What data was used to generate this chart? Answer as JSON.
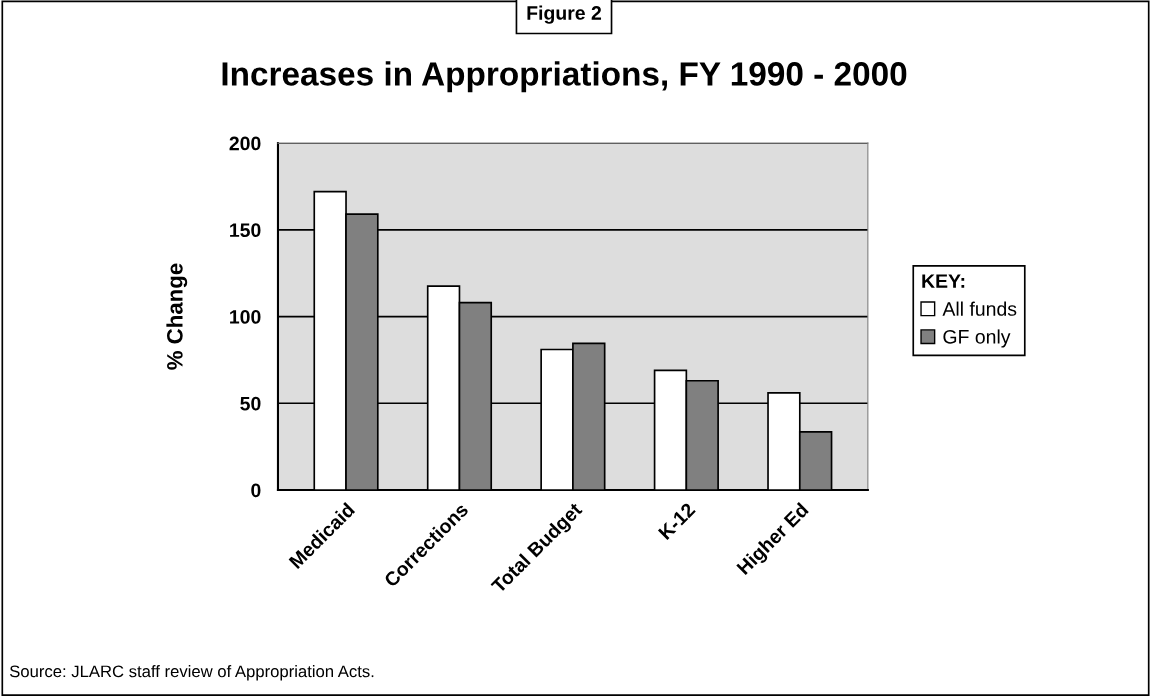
{
  "chart_data": {
    "type": "bar",
    "title": "Increases in Appropriations, FY 1990 - 2000",
    "ylabel": "% Change",
    "categories": [
      "Medicaid",
      "Corrections",
      "Total Budget",
      "K-12",
      "Higher Ed"
    ],
    "series": [
      {
        "name": "All funds",
        "color": "#ffffff",
        "values": [
          172,
          117.5,
          81,
          69,
          56
        ]
      },
      {
        "name": "GF only",
        "color": "#808080",
        "values": [
          159,
          108,
          84.5,
          63,
          33.5
        ]
      }
    ],
    "ylim": [
      0,
      200
    ],
    "yticks": [
      0,
      50,
      100,
      150,
      200
    ],
    "grid": "y",
    "legend": "right",
    "legend_title": "KEY:",
    "annotations": [
      "Figure 2",
      "Source: JLARC staff review of Appropriation Acts."
    ]
  }
}
